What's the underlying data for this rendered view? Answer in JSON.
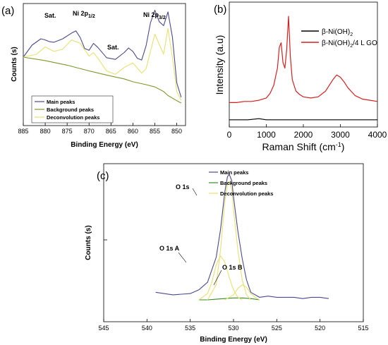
{
  "chart_data": [
    {
      "panel": "(a)",
      "type": "line",
      "xlabel": "Binding Energy (eV)",
      "ylabel": "Counts (s)",
      "xlim": [
        885,
        848
      ],
      "xticks": [
        "885",
        "880",
        "875",
        "870",
        "865",
        "860",
        "855",
        "850"
      ],
      "legend": {
        "placement": "bottom-left",
        "entries": [
          "Main peaks",
          "Background peaks",
          "Deconvolution peaks"
        ]
      },
      "annotations": [
        {
          "text": "Sat.",
          "x": 880
        },
        {
          "text": "Ni 2p",
          "sub": "1/2",
          "x": 873
        },
        {
          "text": "Sat.",
          "x": 860
        },
        {
          "text": "Ni 2p",
          "sub": "3/2",
          "x": 855
        }
      ],
      "series": [
        {
          "name": "Main peaks",
          "color": "#4a4a8c",
          "x": [
            885,
            883,
            881,
            880,
            879,
            878,
            876,
            874,
            873,
            872,
            871,
            870,
            869,
            868,
            866,
            864,
            862,
            861,
            860,
            859,
            858,
            857,
            856,
            855,
            854,
            853,
            852,
            851,
            850,
            849
          ],
          "y": [
            1.0,
            1.21,
            1.32,
            1.3,
            1.27,
            1.26,
            1.32,
            1.42,
            1.46,
            1.34,
            1.15,
            1.12,
            1.24,
            1.17,
            0.99,
            0.96,
            1.08,
            1.16,
            1.1,
            0.98,
            0.95,
            1.2,
            1.6,
            1.82,
            1.62,
            1.55,
            1.79,
            1.35,
            0.55,
            0.3
          ]
        },
        {
          "name": "Background peaks",
          "color": "#7a9a2a",
          "x": [
            885,
            880,
            875,
            870,
            865,
            862,
            860,
            857,
            855,
            853,
            852,
            850,
            849
          ],
          "y": [
            1.0,
            0.94,
            0.86,
            0.76,
            0.67,
            0.62,
            0.57,
            0.52,
            0.48,
            0.4,
            0.33,
            0.24,
            0.2
          ]
        },
        {
          "name": "Deconvolution peaks",
          "color": "#e8e070",
          "x": [
            885,
            882,
            880,
            878,
            876,
            874,
            872,
            870,
            869,
            868,
            866,
            864,
            862,
            860,
            858,
            857,
            855,
            853,
            852,
            851,
            850,
            849
          ],
          "y": [
            1.0,
            1.05,
            1.18,
            1.1,
            1.14,
            1.3,
            1.24,
            1.02,
            1.08,
            0.98,
            0.76,
            0.7,
            0.82,
            0.9,
            0.72,
            0.8,
            1.4,
            1.05,
            1.5,
            1.0,
            0.4,
            0.25
          ]
        }
      ]
    },
    {
      "panel": "(b)",
      "type": "line",
      "xlabel": "Raman Shift (cm",
      "xlabel_sup": "-1",
      "xlabel_end": ")",
      "ylabel": "Intensity (a.u)",
      "xlim": [
        0,
        4000
      ],
      "xticks": [
        "0",
        "1000",
        "2000",
        "3000",
        "4000"
      ],
      "legend": {
        "placement": "top-right",
        "entries": [
          "β-Ni(OH)₂",
          "β-Ni(OH)₂/4 L GO"
        ]
      },
      "series": [
        {
          "name": "β-Ni(OH)₂",
          "color": "#000000",
          "x": [
            0,
            500,
            800,
            1000,
            1500,
            2000,
            2500,
            3000,
            3500,
            4000
          ],
          "y": [
            0.05,
            0.05,
            0.06,
            0.05,
            0.05,
            0.05,
            0.05,
            0.05,
            0.05,
            0.05
          ]
        },
        {
          "name": "β-Ni(OH)₂/4 L GO",
          "color": "#d42020",
          "x": [
            0,
            200,
            400,
            600,
            800,
            1000,
            1100,
            1200,
            1300,
            1350,
            1400,
            1450,
            1500,
            1550,
            1600,
            1650,
            1700,
            1800,
            1900,
            2000,
            2200,
            2400,
            2600,
            2800,
            2900,
            3000,
            3100,
            3200,
            3400,
            3600,
            3800,
            4000
          ],
          "y": [
            0.2,
            0.2,
            0.21,
            0.21,
            0.22,
            0.24,
            0.28,
            0.35,
            0.5,
            0.68,
            0.72,
            0.55,
            0.5,
            0.66,
            0.95,
            0.6,
            0.4,
            0.3,
            0.27,
            0.25,
            0.24,
            0.25,
            0.3,
            0.4,
            0.44,
            0.42,
            0.38,
            0.33,
            0.26,
            0.23,
            0.22,
            0.21
          ]
        }
      ]
    },
    {
      "panel": "(c)",
      "type": "line",
      "xlabel": "Binding Energy (eV)",
      "ylabel": "Counts (s)",
      "xlim": [
        545,
        515
      ],
      "xticks": [
        "545",
        "540",
        "535",
        "530",
        "525",
        "520",
        "515"
      ],
      "legend": {
        "placement": "top-right",
        "entries": [
          "Main peaks",
          "Background peaks",
          "Deconvolution peaks"
        ]
      },
      "annotations": [
        {
          "text": "O 1s",
          "x": 530.5
        },
        {
          "text": "O 1s A",
          "x": 531.7
        },
        {
          "text": "O 1s B",
          "x": 528.5
        }
      ],
      "series": [
        {
          "name": "Main peaks",
          "color": "#4a4a8c",
          "x": [
            539,
            537,
            535,
            534,
            533,
            532,
            531.5,
            531,
            530.7,
            530.5,
            530.2,
            530,
            529.5,
            529,
            528.5,
            528,
            527,
            526,
            525,
            524,
            523,
            522,
            521,
            520,
            519
          ],
          "y": [
            0.06,
            0.04,
            0.05,
            0.08,
            0.14,
            0.34,
            0.56,
            0.86,
            0.98,
            1.0,
            0.95,
            0.82,
            0.55,
            0.33,
            0.16,
            0.06,
            0.02,
            0.03,
            0.02,
            0.02,
            0.02,
            0.01,
            0.02,
            0.02,
            0.01
          ]
        },
        {
          "name": "Background peaks",
          "color": "#3a8a2a",
          "x": [
            534,
            533,
            532,
            531,
            530,
            529,
            528,
            527
          ],
          "y": [
            0.0,
            0.0,
            0.005,
            0.01,
            0.015,
            0.015,
            0.01,
            0.0
          ]
        },
        {
          "name": "Deconvolution peaks A",
          "color": "#e8e070",
          "x": [
            534,
            533,
            532.5,
            532,
            531.5,
            531,
            530.5,
            530,
            529.5,
            529
          ],
          "y": [
            0.0,
            0.05,
            0.14,
            0.28,
            0.35,
            0.3,
            0.18,
            0.08,
            0.02,
            0.0
          ]
        },
        {
          "name": "Deconvolution peaks main",
          "color": "#e8e070",
          "x": [
            533,
            532,
            531.5,
            531,
            530.7,
            530.5,
            530.2,
            530,
            529.5,
            529,
            528.5,
            528
          ],
          "y": [
            0.0,
            0.12,
            0.4,
            0.78,
            0.92,
            0.94,
            0.88,
            0.72,
            0.4,
            0.16,
            0.04,
            0.0
          ]
        },
        {
          "name": "Deconvolution peaks B",
          "color": "#e8e070",
          "x": [
            531,
            530,
            529.5,
            529,
            528.5,
            528,
            527.5,
            527
          ],
          "y": [
            0.0,
            0.04,
            0.09,
            0.12,
            0.1,
            0.05,
            0.02,
            0.0
          ]
        }
      ]
    }
  ],
  "raman_legend": {
    "l1_base": "β-Ni(OH)",
    "l1_sub": "2",
    "l2_base": "β-Ni(OH)",
    "l2_sub": "2",
    "l2_end": "/4 L GO"
  }
}
